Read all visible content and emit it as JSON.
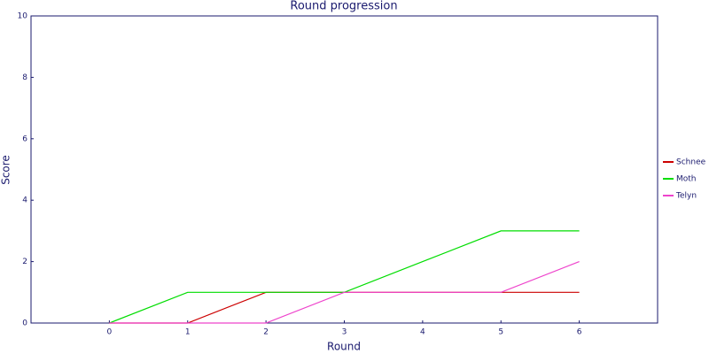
{
  "chart_data": {
    "type": "line",
    "title": "Round progression",
    "x_label": "Round",
    "y_label": "Score",
    "x": [
      0,
      1,
      2,
      3,
      4,
      5,
      6
    ],
    "series": [
      {
        "name": "Schnee",
        "color": "#cc0000",
        "values": [
          0,
          0,
          1,
          1,
          1,
          1,
          1
        ]
      },
      {
        "name": "Moth",
        "color": "#00dd00",
        "values": [
          0,
          1,
          1,
          1,
          2,
          3,
          3
        ]
      },
      {
        "name": "Telyn",
        "color": "#ee44cc",
        "values": [
          0,
          0,
          0,
          1,
          1,
          1,
          2
        ]
      }
    ],
    "xlim": [
      -1,
      7
    ],
    "xticks": [
      0,
      1,
      2,
      3,
      4,
      5,
      6
    ],
    "ylim": [
      0,
      10
    ],
    "yticks": [
      0,
      2,
      4,
      6,
      8,
      10
    ],
    "grid": false,
    "legend": "right"
  }
}
